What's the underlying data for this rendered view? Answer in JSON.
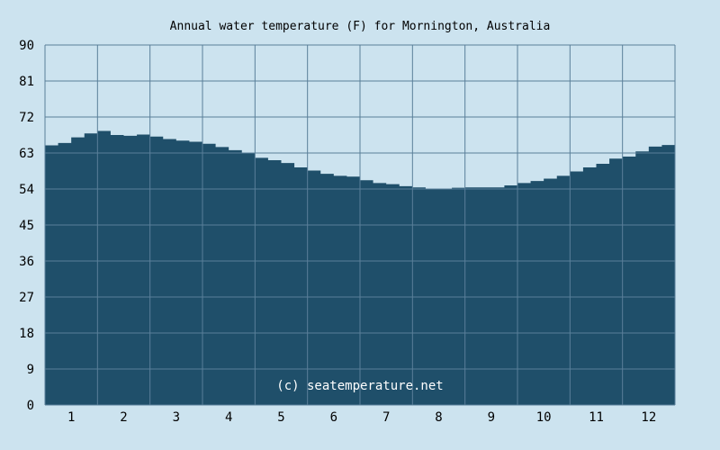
{
  "chart_data": {
    "type": "area",
    "title": "Annual water temperature (F) for Mornington, Australia",
    "xlabel": "",
    "ylabel": "",
    "watermark": "(c) seatemperature.net",
    "x_ticks": [
      "1",
      "2",
      "3",
      "4",
      "5",
      "6",
      "7",
      "8",
      "9",
      "10",
      "11",
      "12"
    ],
    "y_ticks": [
      "0",
      "9",
      "18",
      "27",
      "36",
      "45",
      "54",
      "63",
      "72",
      "81",
      "90"
    ],
    "xlim": [
      0.5,
      12.5
    ],
    "ylim": [
      0,
      90
    ],
    "grid": true,
    "colors": {
      "background": "#cce3ef",
      "plot_background": "#cce3ef",
      "fill": "#1f4f6a",
      "grid": "#5a7f99",
      "text": "#000000",
      "watermark": "#ffffff"
    },
    "series": [
      {
        "x": [
          0.5,
          0.75,
          1.0,
          1.25,
          1.5,
          1.75,
          2.0,
          2.25,
          2.5,
          2.75,
          3.0,
          3.25,
          3.5,
          3.75,
          4.0,
          4.25,
          4.5,
          4.75,
          5.0,
          5.25,
          5.5,
          5.75,
          6.0,
          6.25,
          6.5,
          6.75,
          7.0,
          7.25,
          7.5,
          7.75,
          8.0,
          8.25,
          8.5,
          8.75,
          9.0,
          9.25,
          9.5,
          9.75,
          10.0,
          10.25,
          10.5,
          10.75,
          11.0,
          11.25,
          11.5,
          11.75,
          12.0,
          12.25,
          12.5
        ],
        "values": [
          64.9,
          65.5,
          66.9,
          67.9,
          68.5,
          67.5,
          67.3,
          67.6,
          67.1,
          66.5,
          66.1,
          65.8,
          65.3,
          64.5,
          63.7,
          62.9,
          61.8,
          61.2,
          60.5,
          59.4,
          58.6,
          57.8,
          57.3,
          57.1,
          56.2,
          55.5,
          55.2,
          54.7,
          54.4,
          54.1,
          54.0,
          54.3,
          54.4,
          54.4,
          54.4,
          54.9,
          55.5,
          56.0,
          56.6,
          57.3,
          58.4,
          59.4,
          60.3,
          61.6,
          62.1,
          63.4,
          64.6,
          65.0,
          65.5
        ]
      }
    ]
  }
}
